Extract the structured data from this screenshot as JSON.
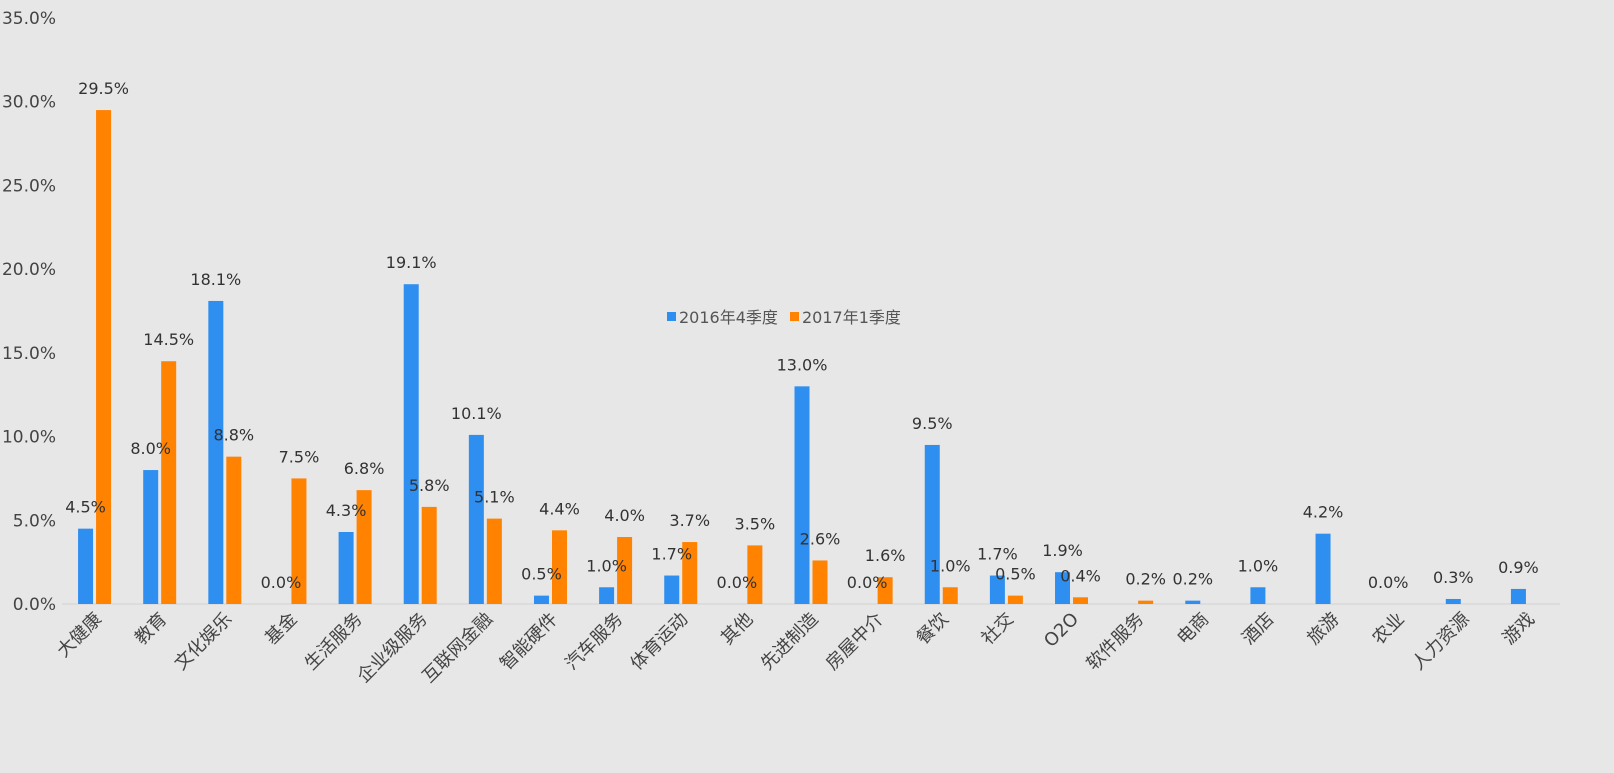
{
  "chart_data": {
    "type": "bar",
    "title": "",
    "xlabel": "",
    "ylabel": "",
    "ylim": [
      0,
      35
    ],
    "ytick_step": 5,
    "ytick_format": "percent_1dp",
    "legend_position": "center",
    "grid": false,
    "categories": [
      "大健康",
      "教育",
      "文化娱乐",
      "基金",
      "生活服务",
      "企业级服务",
      "互联网金融",
      "智能硬件",
      "汽车服务",
      "体育运动",
      "其他",
      "先进制造",
      "房屋中介",
      "餐饮",
      "社交",
      "O2O",
      "软件服务",
      "电商",
      "酒店",
      "旅游",
      "农业",
      "人力资源",
      "游戏"
    ],
    "series": [
      {
        "name": "2016年4季度",
        "color": "#2e8ff0",
        "values": [
          4.5,
          8.0,
          18.1,
          0.0,
          4.3,
          19.1,
          10.1,
          0.5,
          1.0,
          1.7,
          0.0,
          13.0,
          0.0,
          9.5,
          1.7,
          1.9,
          null,
          0.2,
          1.0,
          4.2,
          0.0,
          0.3,
          0.9
        ],
        "labels": [
          "4.5%",
          "8.0%",
          "18.1%",
          "0.0%",
          "4.3%",
          "19.1%",
          "10.1%",
          "0.5%",
          "1.0%",
          "1.7%",
          "0.0%",
          "13.0%",
          "0.0%",
          "9.5%",
          "1.7%",
          "1.9%",
          "",
          "0.2%",
          "1.0%",
          "4.2%",
          "0.0%",
          "0.3%",
          "0.9%"
        ]
      },
      {
        "name": "2017年1季度",
        "color": "#ff8200",
        "values": [
          29.5,
          14.5,
          8.8,
          7.5,
          6.8,
          5.8,
          5.1,
          4.4,
          4.0,
          3.7,
          3.5,
          2.6,
          1.6,
          1.0,
          0.5,
          0.4,
          0.2,
          null,
          null,
          null,
          null,
          null,
          null
        ],
        "labels": [
          "29.5%",
          "14.5%",
          "8.8%",
          "7.5%",
          "6.8%",
          "5.8%",
          "5.1%",
          "4.4%",
          "4.0%",
          "3.7%",
          "3.5%",
          "2.6%",
          "1.6%",
          "1.0%",
          "0.5%",
          "0.4%",
          "0.2%",
          "",
          "",
          "",
          "",
          "",
          ""
        ]
      }
    ]
  }
}
